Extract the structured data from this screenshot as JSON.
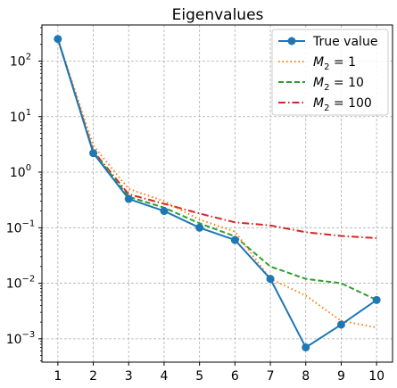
{
  "chart_data": {
    "type": "line",
    "title": "Eigenvalues",
    "xlabel": "",
    "ylabel": "",
    "yscale": "log",
    "grid": true,
    "legend_position": "top-right",
    "xlim": [
      0.55,
      10.45
    ],
    "ylim_log10": [
      -3.42,
      2.65
    ],
    "x_ticks": [
      "1",
      "2",
      "3",
      "4",
      "5",
      "6",
      "7",
      "8",
      "9",
      "10"
    ],
    "y_ticks": [
      {
        "base": "10",
        "exp": "2",
        "value": 100
      },
      {
        "base": "10",
        "exp": "1",
        "value": 10
      },
      {
        "base": "10",
        "exp": "0",
        "value": 1
      },
      {
        "base": "10",
        "exp": "−1",
        "value": 0.1
      },
      {
        "base": "10",
        "exp": "−2",
        "value": 0.01
      },
      {
        "base": "10",
        "exp": "−3",
        "value": 0.001
      }
    ],
    "x": [
      1,
      2,
      3,
      4,
      5,
      6,
      7,
      8,
      9,
      10
    ],
    "series": [
      {
        "name": "True value",
        "color": "#1f77b4",
        "style": "solid",
        "marker": "circle",
        "values": [
          250,
          2.2,
          0.33,
          0.2,
          0.1,
          0.06,
          0.012,
          0.0007,
          0.0018,
          0.005
        ]
      },
      {
        "name_prefix": "M",
        "name_sub": "2",
        "name_suffix": " = 1",
        "color": "#ff7f0e",
        "style": "dotted",
        "values": [
          250,
          3.0,
          0.5,
          0.3,
          0.14,
          0.085,
          0.012,
          0.006,
          0.0021,
          0.0016
        ]
      },
      {
        "name_prefix": "M",
        "name_sub": "2",
        "name_suffix": " = 10",
        "color": "#2ca02c",
        "style": "dashed",
        "values": [
          250,
          2.3,
          0.36,
          0.23,
          0.12,
          0.07,
          0.02,
          0.012,
          0.01,
          0.005
        ]
      },
      {
        "name_prefix": "M",
        "name_sub": "2",
        "name_suffix": " = 100",
        "color": "#d62728",
        "style": "dashdot",
        "values": [
          250,
          2.4,
          0.4,
          0.27,
          0.18,
          0.125,
          0.11,
          0.083,
          0.071,
          0.065
        ]
      }
    ]
  }
}
